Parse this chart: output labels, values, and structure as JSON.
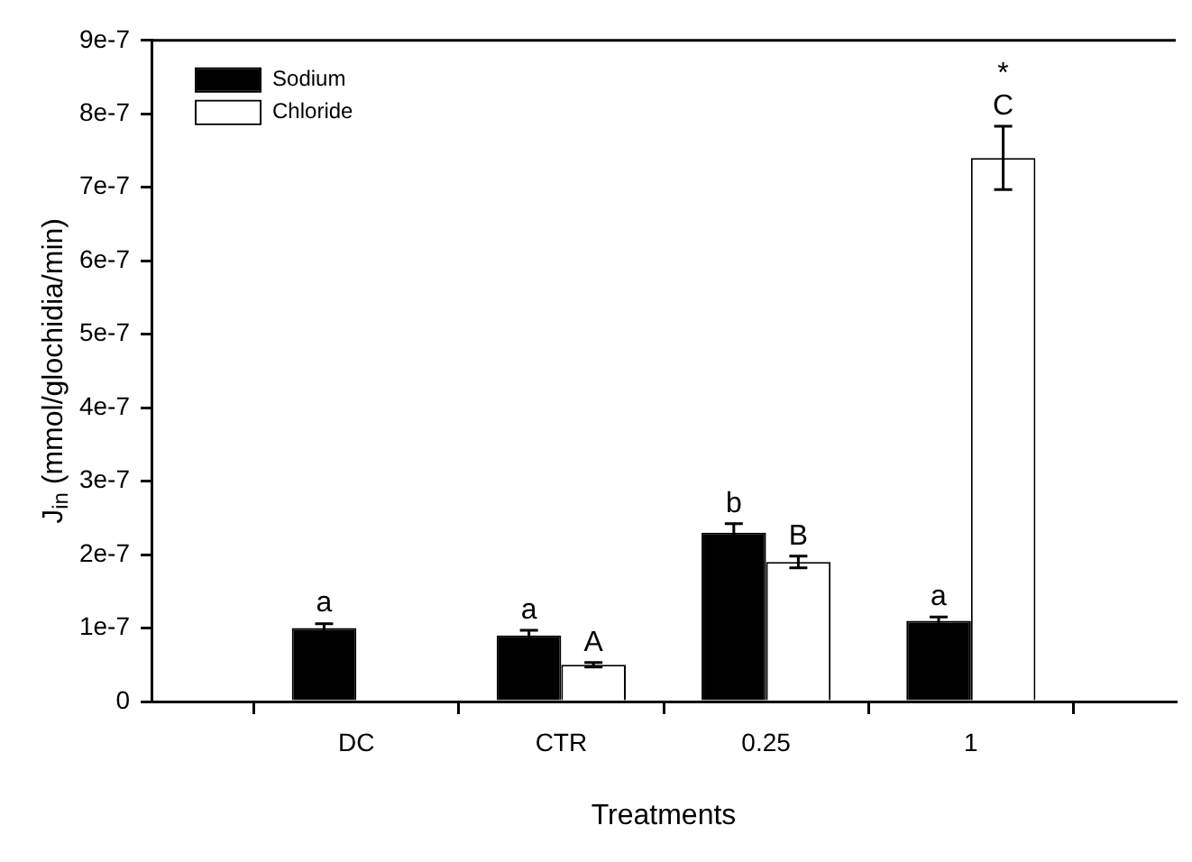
{
  "chart_data": {
    "type": "bar",
    "xlabel": "Treatments",
    "ylabel": "J$_{in}$ (mmol/glochidia/min)",
    "categories": [
      "DC",
      "CTR",
      "0.25",
      "1"
    ],
    "series": [
      {
        "name": "Sodium",
        "color": "#000000",
        "values": [
          1e-07,
          9e-08,
          2.3e-07,
          1.1e-07
        ],
        "errors": [
          6e-09,
          7e-09,
          1.2e-08,
          5e-09
        ]
      },
      {
        "name": "Chloride",
        "color": "#ffffff",
        "values": [
          null,
          5e-08,
          1.9e-07,
          7.4e-07
        ],
        "errors": [
          null,
          3e-09,
          8e-09,
          4.3e-08
        ]
      }
    ],
    "ylim": [
      0,
      9e-07
    ],
    "yticks": [
      0,
      {
        "value": 1e-07,
        "label": "1e-7"
      },
      {
        "value": 2e-07,
        "label": "2e-7"
      },
      {
        "value": 3e-07,
        "label": "3e-7"
      },
      {
        "value": 4e-07,
        "label": "4e-7"
      },
      {
        "value": 5e-07,
        "label": "5e-7"
      },
      {
        "value": 6e-07,
        "label": "6e-7"
      },
      {
        "value": 7e-07,
        "label": "7e-7"
      },
      {
        "value": 8e-07,
        "label": "8e-7"
      },
      {
        "value": 9e-07,
        "label": "9e-7"
      }
    ],
    "annotations": [
      {
        "text": "a",
        "x": "DC",
        "y": 1e-07
      },
      {
        "text": "a",
        "x": "CTR",
        "y": 9e-08
      },
      {
        "text": "A",
        "x": "CTR",
        "y": 5e-08
      },
      {
        "text": "b",
        "x": "0.25",
        "y": 2.3e-07
      },
      {
        "text": "B",
        "x": "0.25",
        "y": 1.9e-07
      },
      {
        "text": "a",
        "x": "1",
        "y": 1.1e-07
      },
      {
        "text": "C",
        "x": "1",
        "y": 7.4e-07
      },
      {
        "text": "*",
        "x": "1",
        "y": 7.4e-07
      }
    ],
    "legend": "top left",
    "grid": false
  }
}
